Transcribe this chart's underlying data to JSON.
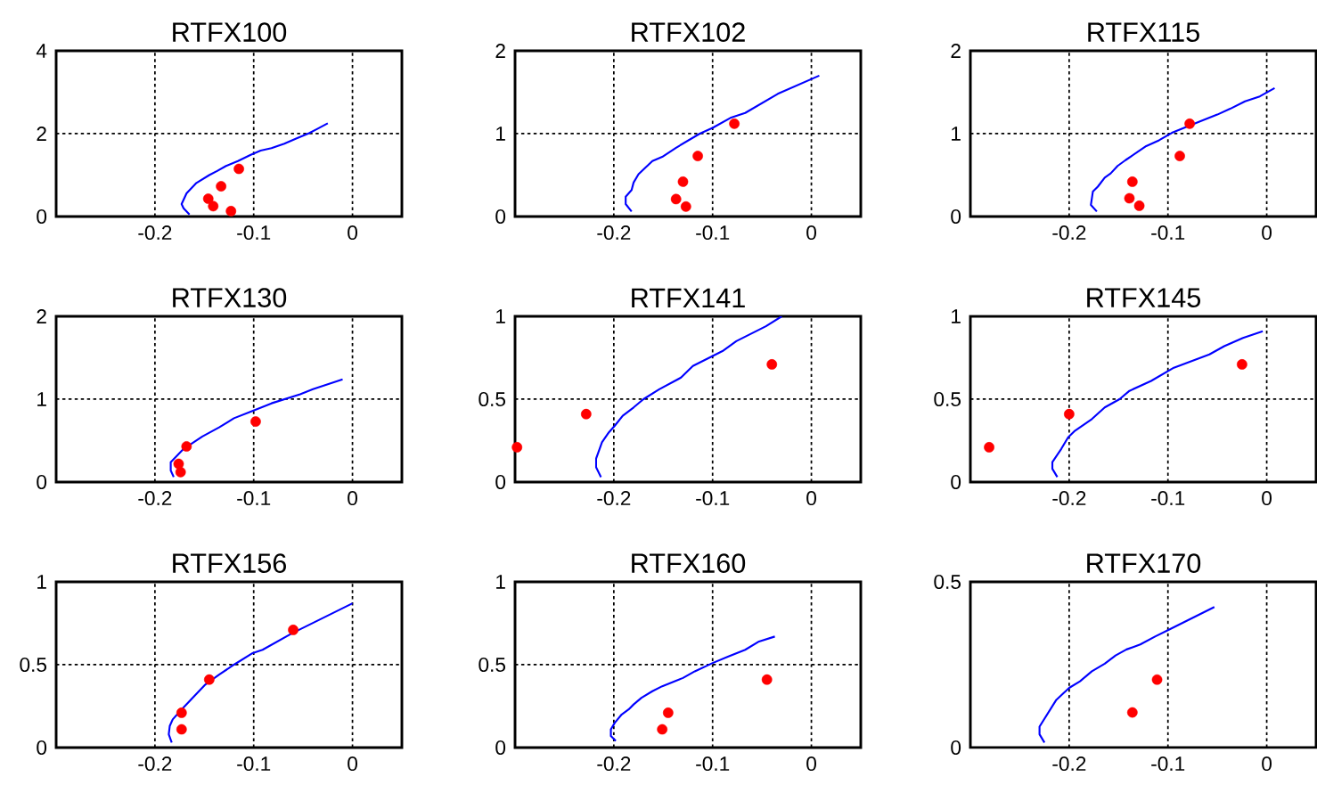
{
  "chart_data": [
    {
      "type": "line",
      "title": "RTFX100",
      "xlim": [
        -0.3,
        0.05
      ],
      "xticks": [
        -0.2,
        -0.1,
        0
      ],
      "ylim": [
        0,
        4
      ],
      "yticks": [
        0,
        2,
        4
      ],
      "grid": true,
      "series": [
        {
          "color": "#0000ff",
          "x": [
            -0.165,
            -0.171,
            -0.173,
            -0.168,
            -0.158,
            -0.145,
            -0.137,
            -0.128,
            -0.116,
            -0.103,
            -0.093,
            -0.082,
            -0.069,
            -0.057,
            -0.044,
            -0.036,
            -0.025
          ],
          "values": [
            0.05,
            0.2,
            0.3,
            0.56,
            0.81,
            1.0,
            1.1,
            1.22,
            1.34,
            1.49,
            1.59,
            1.65,
            1.76,
            1.88,
            2.01,
            2.11,
            2.25
          ]
        },
        {
          "type": "scatter",
          "marker": "circle",
          "color": "#ff0000",
          "x": [
            -0.115,
            -0.133,
            -0.146,
            -0.141,
            -0.123
          ],
          "values": [
            1.15,
            0.73,
            0.43,
            0.25,
            0.13
          ]
        }
      ]
    },
    {
      "type": "line",
      "title": "RTFX102",
      "xlim": [
        -0.3,
        0.05
      ],
      "xticks": [
        -0.2,
        -0.1,
        0
      ],
      "ylim": [
        0,
        2
      ],
      "yticks": [
        0,
        1,
        2
      ],
      "grid": true,
      "series": [
        {
          "color": "#0000ff",
          "x": [
            -0.182,
            -0.188,
            -0.188,
            -0.182,
            -0.18,
            -0.175,
            -0.161,
            -0.151,
            -0.137,
            -0.113,
            -0.1,
            -0.082,
            -0.067,
            -0.034,
            0.008
          ],
          "values": [
            0.06,
            0.15,
            0.24,
            0.32,
            0.41,
            0.51,
            0.67,
            0.72,
            0.83,
            1.0,
            1.07,
            1.19,
            1.25,
            1.48,
            1.7
          ]
        },
        {
          "type": "scatter",
          "marker": "circle",
          "color": "#ff0000",
          "x": [
            -0.078,
            -0.115,
            -0.13,
            -0.137,
            -0.127
          ],
          "values": [
            1.12,
            0.73,
            0.42,
            0.21,
            0.12
          ]
        }
      ]
    },
    {
      "type": "line",
      "title": "RTFX115",
      "xlim": [
        -0.3,
        0.05
      ],
      "xticks": [
        -0.2,
        -0.1,
        0
      ],
      "ylim": [
        0,
        2
      ],
      "yticks": [
        0,
        1,
        2
      ],
      "grid": true,
      "series": [
        {
          "color": "#0000ff",
          "x": [
            -0.172,
            -0.178,
            -0.176,
            -0.171,
            -0.164,
            -0.158,
            -0.151,
            -0.143,
            -0.122,
            -0.109,
            -0.096,
            -0.067,
            -0.05,
            -0.037,
            -0.022,
            -0.007,
            0.008
          ],
          "values": [
            0.06,
            0.14,
            0.3,
            0.36,
            0.47,
            0.52,
            0.61,
            0.68,
            0.85,
            0.92,
            1.01,
            1.15,
            1.23,
            1.3,
            1.39,
            1.45,
            1.55
          ]
        },
        {
          "type": "scatter",
          "marker": "circle",
          "color": "#ff0000",
          "x": [
            -0.078,
            -0.088,
            -0.136,
            -0.139,
            -0.129
          ],
          "values": [
            1.12,
            0.73,
            0.42,
            0.22,
            0.13
          ]
        }
      ]
    },
    {
      "type": "line",
      "title": "RTFX130",
      "xlim": [
        -0.3,
        0.05
      ],
      "xticks": [
        -0.2,
        -0.1,
        0
      ],
      "ylim": [
        0,
        2
      ],
      "yticks": [
        0,
        1,
        2
      ],
      "grid": true,
      "series": [
        {
          "color": "#0000ff",
          "x": [
            -0.181,
            -0.184,
            -0.184,
            -0.171,
            -0.152,
            -0.135,
            -0.12,
            -0.103,
            -0.082,
            -0.053,
            -0.04,
            -0.01
          ],
          "values": [
            0.06,
            0.14,
            0.24,
            0.4,
            0.55,
            0.66,
            0.77,
            0.85,
            0.95,
            1.06,
            1.12,
            1.24
          ]
        },
        {
          "type": "scatter",
          "marker": "circle",
          "color": "#ff0000",
          "x": [
            -0.098,
            -0.168,
            -0.176,
            -0.174
          ],
          "values": [
            0.73,
            0.43,
            0.22,
            0.12
          ]
        }
      ]
    },
    {
      "type": "line",
      "title": "RTFX141",
      "xlim": [
        -0.3,
        0.05
      ],
      "xticks": [
        -0.2,
        -0.1,
        0
      ],
      "ylim": [
        0,
        1
      ],
      "yticks": [
        0,
        0.5,
        1
      ],
      "grid": true,
      "series": [
        {
          "color": "#0000ff",
          "x": [
            -0.213,
            -0.218,
            -0.218,
            -0.212,
            -0.205,
            -0.199,
            -0.191,
            -0.18,
            -0.17,
            -0.154,
            -0.132,
            -0.12,
            -0.09,
            -0.076,
            -0.046,
            -0.03
          ],
          "values": [
            0.03,
            0.09,
            0.14,
            0.24,
            0.3,
            0.34,
            0.4,
            0.45,
            0.5,
            0.56,
            0.63,
            0.7,
            0.79,
            0.85,
            0.94,
            1.0
          ]
        },
        {
          "type": "scatter",
          "marker": "circle",
          "color": "#ff0000",
          "x": [
            -0.04,
            -0.228,
            -0.298
          ],
          "values": [
            0.71,
            0.41,
            0.21
          ]
        }
      ]
    },
    {
      "type": "line",
      "title": "RTFX145",
      "xlim": [
        -0.3,
        0.05
      ],
      "xticks": [
        -0.2,
        -0.1,
        0
      ],
      "ylim": [
        0,
        1
      ],
      "yticks": [
        0,
        0.5,
        1
      ],
      "grid": true,
      "series": [
        {
          "color": "#0000ff",
          "x": [
            -0.212,
            -0.217,
            -0.217,
            -0.208,
            -0.201,
            -0.194,
            -0.177,
            -0.164,
            -0.149,
            -0.139,
            -0.117,
            -0.094,
            -0.058,
            -0.043,
            -0.024,
            -0.004
          ],
          "values": [
            0.03,
            0.08,
            0.12,
            0.2,
            0.27,
            0.31,
            0.38,
            0.45,
            0.5,
            0.55,
            0.61,
            0.69,
            0.77,
            0.82,
            0.87,
            0.91
          ]
        },
        {
          "type": "scatter",
          "marker": "circle",
          "color": "#ff0000",
          "x": [
            -0.025,
            -0.2,
            -0.281
          ],
          "values": [
            0.71,
            0.41,
            0.21
          ]
        }
      ]
    },
    {
      "type": "line",
      "title": "RTFX156",
      "xlim": [
        -0.3,
        0.05
      ],
      "xticks": [
        -0.2,
        -0.1,
        0
      ],
      "ylim": [
        0,
        1
      ],
      "yticks": [
        0,
        0.5,
        1
      ],
      "grid": true,
      "series": [
        {
          "color": "#0000ff",
          "x": [
            -0.183,
            -0.186,
            -0.185,
            -0.182,
            -0.173,
            -0.149,
            -0.135,
            -0.12,
            -0.101,
            -0.091,
            -0.061,
            0
          ],
          "values": [
            0.03,
            0.08,
            0.13,
            0.17,
            0.23,
            0.38,
            0.44,
            0.5,
            0.57,
            0.59,
            0.69,
            0.87
          ]
        },
        {
          "type": "scatter",
          "marker": "circle",
          "color": "#ff0000",
          "x": [
            -0.06,
            -0.145,
            -0.173,
            -0.173
          ],
          "values": [
            0.71,
            0.41,
            0.21,
            0.11
          ]
        }
      ]
    },
    {
      "type": "line",
      "title": "RTFX160",
      "xlim": [
        -0.3,
        0.05
      ],
      "xticks": [
        -0.2,
        -0.1,
        0
      ],
      "ylim": [
        0,
        1
      ],
      "yticks": [
        0,
        0.5,
        1
      ],
      "grid": true,
      "series": [
        {
          "color": "#0000ff",
          "x": [
            -0.198,
            -0.203,
            -0.203,
            -0.199,
            -0.192,
            -0.185,
            -0.18,
            -0.172,
            -0.161,
            -0.151,
            -0.13,
            -0.118,
            -0.1,
            -0.084,
            -0.067,
            -0.053,
            -0.037
          ],
          "values": [
            0.04,
            0.07,
            0.11,
            0.15,
            0.2,
            0.23,
            0.26,
            0.3,
            0.34,
            0.37,
            0.42,
            0.46,
            0.51,
            0.55,
            0.59,
            0.64,
            0.67
          ]
        },
        {
          "type": "scatter",
          "marker": "circle",
          "color": "#ff0000",
          "x": [
            -0.045,
            -0.145,
            -0.151
          ],
          "values": [
            0.41,
            0.21,
            0.11
          ]
        }
      ]
    },
    {
      "type": "line",
      "title": "RTFX170",
      "xlim": [
        -0.3,
        0.05
      ],
      "xticks": [
        -0.2,
        -0.1,
        0
      ],
      "ylim": [
        0,
        0.5
      ],
      "yticks": [
        0,
        0.5
      ],
      "grid": true,
      "series": [
        {
          "color": "#0000ff",
          "x": [
            -0.225,
            -0.23,
            -0.23,
            -0.213,
            -0.2,
            -0.189,
            -0.177,
            -0.164,
            -0.153,
            -0.142,
            -0.128,
            -0.113,
            -0.1,
            -0.053
          ],
          "values": [
            0.015,
            0.04,
            0.063,
            0.144,
            0.18,
            0.2,
            0.23,
            0.253,
            0.278,
            0.296,
            0.311,
            0.335,
            0.354,
            0.424
          ]
        },
        {
          "type": "scatter",
          "marker": "circle",
          "color": "#ff0000",
          "x": [
            -0.111,
            -0.136
          ],
          "values": [
            0.205,
            0.106
          ]
        }
      ]
    }
  ]
}
